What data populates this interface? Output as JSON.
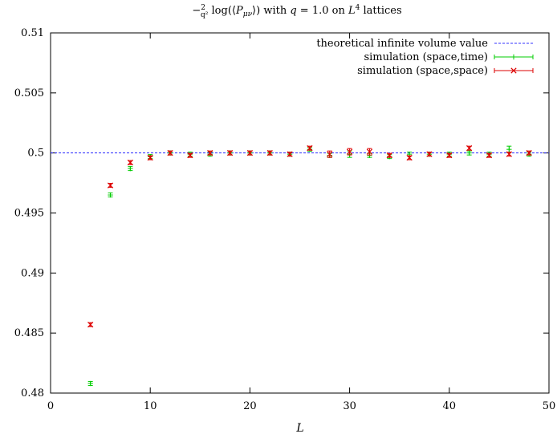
{
  "chart_data": {
    "type": "scatter",
    "title": "−(2/q²) log(⟨P_μν⟩) with q = 1.0 on L⁴ lattices",
    "xlabel": "L",
    "ylabel": "",
    "xlim": [
      0,
      50
    ],
    "ylim": [
      0.48,
      0.51
    ],
    "x_ticks": [
      0,
      10,
      20,
      30,
      40,
      50
    ],
    "y_ticks": [
      0.48,
      0.485,
      0.49,
      0.495,
      0.5,
      0.505,
      0.51
    ],
    "x_tick_labels": [
      "0",
      "10",
      "20",
      "30",
      "40",
      "50"
    ],
    "y_tick_labels": [
      "0.48",
      "0.485",
      "0.49",
      "0.495",
      "0.5",
      "0.505",
      "0.51"
    ],
    "grid": false,
    "legend_position": "top-right",
    "reference_line": {
      "name": "theoretical infinite volume value",
      "y": 0.5,
      "color": "#3030ff",
      "style": "dashed"
    },
    "series": [
      {
        "name": "simulation (space,time)",
        "color": "#00cc00",
        "marker": "plus",
        "points": [
          {
            "x": 4,
            "y": 0.4808,
            "err": 0.0001
          },
          {
            "x": 6,
            "y": 0.4965,
            "err": 0.0001
          },
          {
            "x": 8,
            "y": 0.4987,
            "err": 0.0001
          },
          {
            "x": 10,
            "y": 0.4997,
            "err": 0.0001
          },
          {
            "x": 12,
            "y": 0.5,
            "err": 0.0001
          },
          {
            "x": 14,
            "y": 0.4999,
            "err": 0.0001
          },
          {
            "x": 16,
            "y": 0.4999,
            "err": 0.0001
          },
          {
            "x": 18,
            "y": 0.5,
            "err": 0.0001
          },
          {
            "x": 20,
            "y": 0.5,
            "err": 0.0001
          },
          {
            "x": 22,
            "y": 0.5,
            "err": 0.0001
          },
          {
            "x": 24,
            "y": 0.4999,
            "err": 0.0001
          },
          {
            "x": 26,
            "y": 0.5003,
            "err": 0.0001
          },
          {
            "x": 28,
            "y": 0.4998,
            "err": 0.0001
          },
          {
            "x": 30,
            "y": 0.4999,
            "err": 0.0002
          },
          {
            "x": 32,
            "y": 0.4998,
            "err": 0.0001
          },
          {
            "x": 34,
            "y": 0.4997,
            "err": 0.0001
          },
          {
            "x": 36,
            "y": 0.4999,
            "err": 0.0001
          },
          {
            "x": 38,
            "y": 0.4999,
            "err": 0.0001
          },
          {
            "x": 40,
            "y": 0.4999,
            "err": 0.0001
          },
          {
            "x": 42,
            "y": 0.5,
            "err": 0.0001
          },
          {
            "x": 44,
            "y": 0.4999,
            "err": 0.0001
          },
          {
            "x": 46,
            "y": 0.5003,
            "err": 0.0002
          },
          {
            "x": 48,
            "y": 0.4999,
            "err": 0.0001
          }
        ]
      },
      {
        "name": "simulation (space,space)",
        "color": "#dd0000",
        "marker": "cross",
        "points": [
          {
            "x": 4,
            "y": 0.4857,
            "err": 0.0001
          },
          {
            "x": 6,
            "y": 0.4973,
            "err": 0.0001
          },
          {
            "x": 8,
            "y": 0.4992,
            "err": 0.0001
          },
          {
            "x": 10,
            "y": 0.4996,
            "err": 0.0001
          },
          {
            "x": 12,
            "y": 0.5,
            "err": 0.0001
          },
          {
            "x": 14,
            "y": 0.4998,
            "err": 0.0001
          },
          {
            "x": 16,
            "y": 0.5,
            "err": 0.0001
          },
          {
            "x": 18,
            "y": 0.5,
            "err": 0.0001
          },
          {
            "x": 20,
            "y": 0.5,
            "err": 0.0001
          },
          {
            "x": 22,
            "y": 0.5,
            "err": 0.0001
          },
          {
            "x": 24,
            "y": 0.4999,
            "err": 0.0001
          },
          {
            "x": 26,
            "y": 0.5004,
            "err": 0.0001
          },
          {
            "x": 28,
            "y": 0.4999,
            "err": 0.0002
          },
          {
            "x": 30,
            "y": 0.5001,
            "err": 0.0002
          },
          {
            "x": 32,
            "y": 0.5001,
            "err": 0.0002
          },
          {
            "x": 34,
            "y": 0.4998,
            "err": 0.0001
          },
          {
            "x": 36,
            "y": 0.4996,
            "err": 0.0001
          },
          {
            "x": 38,
            "y": 0.4999,
            "err": 0.0001
          },
          {
            "x": 40,
            "y": 0.4998,
            "err": 0.0001
          },
          {
            "x": 42,
            "y": 0.5004,
            "err": 0.0001
          },
          {
            "x": 44,
            "y": 0.4998,
            "err": 0.0001
          },
          {
            "x": 46,
            "y": 0.4999,
            "err": 0.0001
          },
          {
            "x": 48,
            "y": 0.5,
            "err": 0.0001
          }
        ]
      }
    ]
  }
}
